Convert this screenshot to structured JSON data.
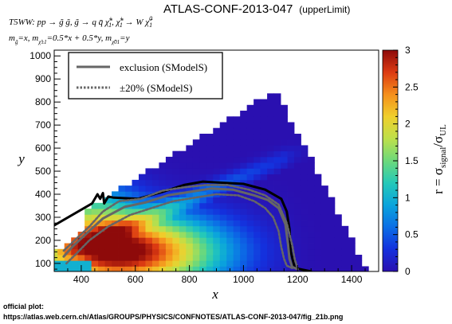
{
  "figure": {
    "title": "ATLAS-CONF-2013-047",
    "title_tag": "(upperLimit)",
    "process_line": {
      "model": "T5WW",
      "lead": ": pp → g̃ g̃, g̃ → q q̄ χ̃",
      "pm": "±",
      "one": "1",
      "mid": ", χ̃",
      "tail": " → W χ̃",
      "zero": "0"
    },
    "mass_line": {
      "m1": "m",
      "s1": "g̃",
      "v1": "=x, m",
      "s2": "χ̃±1",
      "v2": "=0.5*x + 0.5*y, m",
      "s3": "χ̃01",
      "v3": "=y"
    }
  },
  "footer": {
    "line1": "official plot:",
    "line2": "https://atlas.web.cern.ch/Atlas/GROUPS/PHYSICS/CONFNOTES/ATLAS-CONF-2013-047/fig_21b.png"
  },
  "chart_data": {
    "type": "heatmap",
    "xlabel": "x",
    "ylabel": "y",
    "xlim": [
      300,
      1500
    ],
    "ylim": [
      65,
      1025
    ],
    "x_ticks": [
      "400",
      "600",
      "800",
      "1000",
      "1200",
      "1400"
    ],
    "x_tick_values": [
      400,
      600,
      800,
      1000,
      1200,
      1400
    ],
    "y_ticks": [
      "100",
      "200",
      "300",
      "400",
      "500",
      "600",
      "700",
      "800",
      "900",
      "1000"
    ],
    "y_tick_values": [
      100,
      200,
      300,
      400,
      500,
      600,
      700,
      800,
      900,
      1000
    ],
    "z_label_main": "r = σ",
    "z_label_sub1": "signal",
    "z_label_mid": "/σ",
    "z_label_sub2": "UL",
    "zlim": [
      0,
      3
    ],
    "z_ticks": [
      "0",
      "0.5",
      "1",
      "1.5",
      "2",
      "2.5",
      "3"
    ],
    "z_tick_values": [
      0,
      0.5,
      1,
      1.5,
      2,
      2.5,
      3
    ],
    "grid_spacing": [
      25,
      25
    ],
    "grid_cells": true,
    "legend": {
      "placement": "top-left",
      "entries": [
        {
          "label": "exclusion (SModelS)",
          "style": "solid",
          "color": "#666666"
        },
        {
          "label": "±20% (SModelS)",
          "style": "dotted",
          "color": "#666666"
        }
      ]
    },
    "contours": [
      {
        "name": "official exclusion",
        "color": "#000000",
        "style": "solid",
        "x": [
          300,
          440,
          460,
          470,
          480,
          485,
          500,
          520,
          610,
          700,
          780,
          850,
          920,
          1000,
          1080,
          1140,
          1160,
          1170,
          1175,
          1190,
          1250
        ],
        "y": [
          265,
          360,
          400,
          380,
          405,
          360,
          390,
          385,
          380,
          410,
          440,
          455,
          450,
          445,
          420,
          380,
          325,
          250,
          150,
          80,
          65
        ]
      },
      {
        "name": "exclusion (SModelS)",
        "color": "#666666",
        "style": "solid",
        "x": [
          335,
          370,
          420,
          480,
          560,
          640,
          720,
          800,
          880,
          960,
          1040,
          1090,
          1130,
          1155,
          1165,
          1170,
          1180,
          1200
        ],
        "y": [
          130,
          175,
          230,
          295,
          345,
          365,
          395,
          410,
          425,
          420,
          395,
          375,
          340,
          270,
          180,
          120,
          85,
          75
        ]
      },
      {
        "name": "+20% (SModelS)",
        "color": "#666666",
        "style": "dotted",
        "x": [
          335,
          380,
          430,
          480,
          540,
          620,
          700,
          780,
          860,
          940,
          1020,
          1080,
          1130,
          1160,
          1180,
          1190,
          1200
        ],
        "y": [
          155,
          205,
          260,
          325,
          370,
          380,
          415,
          430,
          440,
          440,
          420,
          395,
          355,
          275,
          180,
          115,
          80
        ]
      },
      {
        "name": "-20% (SModelS)",
        "color": "#666666",
        "style": "dotted",
        "x": [
          345,
          380,
          430,
          500,
          580,
          660,
          740,
          820,
          900,
          980,
          1040,
          1080,
          1110,
          1130,
          1140,
          1150,
          1160,
          1180
        ],
        "y": [
          100,
          140,
          200,
          260,
          310,
          340,
          370,
          385,
          400,
          395,
          370,
          340,
          300,
          240,
          170,
          120,
          90,
          80
        ]
      }
    ]
  }
}
